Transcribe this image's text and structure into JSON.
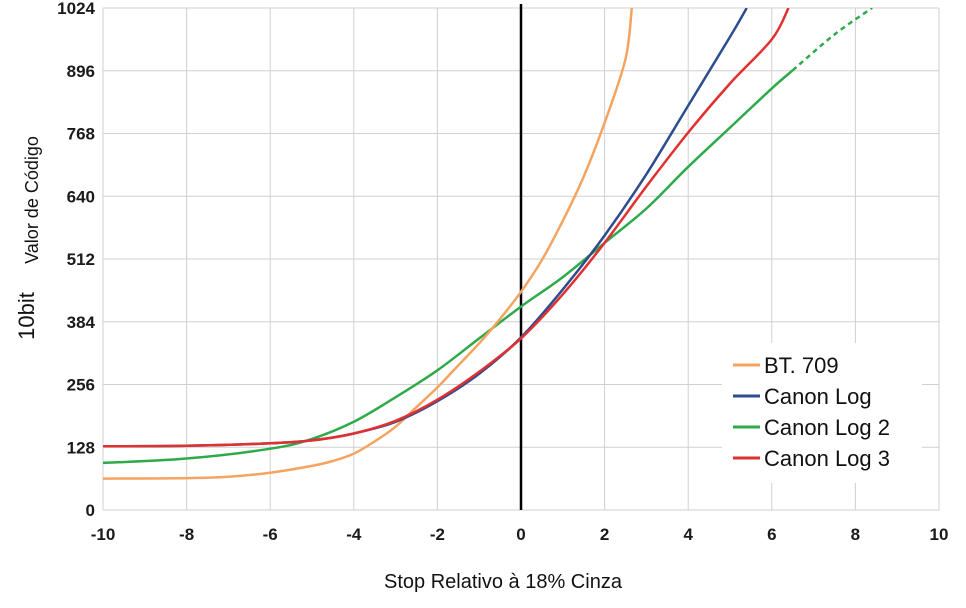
{
  "chart_data": {
    "type": "line",
    "title": "",
    "xlabel": "Stop Relativo à 18% Cinza",
    "ylabel_main": "Valor de Código",
    "ylabel_prefix": "10bit",
    "xlim": [
      -10,
      10
    ],
    "ylim": [
      0,
      1024
    ],
    "xticks": [
      -10,
      -8,
      -6,
      -4,
      -2,
      0,
      2,
      4,
      6,
      8,
      10
    ],
    "xtick_labels": [
      "-10",
      "-8",
      "-6",
      "-4",
      "-2",
      "0",
      "2",
      "4",
      "6",
      "8",
      "10"
    ],
    "yticks": [
      0,
      128,
      256,
      384,
      512,
      640,
      768,
      896,
      1024
    ],
    "ytick_labels": [
      "0",
      "128",
      "256",
      "384",
      "512",
      "640",
      "768",
      "896",
      "1024"
    ],
    "grid": true,
    "legend_position": "bottom-right",
    "reference_line_x": 0,
    "series": [
      {
        "name": "BT. 709",
        "color": "#f4a460",
        "points": [
          [
            -10,
            64
          ],
          [
            -8,
            65
          ],
          [
            -7,
            68
          ],
          [
            -6,
            76
          ],
          [
            -5,
            90
          ],
          [
            -4.5,
            100
          ],
          [
            -4,
            115
          ],
          [
            -3.5,
            140
          ],
          [
            -3,
            170
          ],
          [
            -2.5,
            210
          ],
          [
            -2,
            250
          ],
          [
            -1.5,
            295
          ],
          [
            -1,
            340
          ],
          [
            -0.5,
            390
          ],
          [
            0,
            445
          ],
          [
            0.5,
            510
          ],
          [
            1,
            590
          ],
          [
            1.5,
            680
          ],
          [
            2,
            790
          ],
          [
            2.5,
            920
          ],
          [
            2.65,
            1024
          ]
        ]
      },
      {
        "name": "Canon Log",
        "color": "#2e4d8f",
        "points": [
          [
            -10,
            130
          ],
          [
            -8,
            131
          ],
          [
            -6,
            136
          ],
          [
            -5,
            142
          ],
          [
            -4,
            156
          ],
          [
            -3,
            180
          ],
          [
            -2,
            222
          ],
          [
            -1,
            278
          ],
          [
            0,
            352
          ],
          [
            1,
            450
          ],
          [
            2,
            560
          ],
          [
            3,
            685
          ],
          [
            4,
            825
          ],
          [
            5,
            965
          ],
          [
            5.4,
            1024
          ]
        ]
      },
      {
        "name": "Canon Log 2",
        "color": "#2eaa4a",
        "points": [
          [
            -10,
            96
          ],
          [
            -8,
            105
          ],
          [
            -6,
            125
          ],
          [
            -5,
            145
          ],
          [
            -4,
            180
          ],
          [
            -3,
            230
          ],
          [
            -2,
            285
          ],
          [
            -1,
            350
          ],
          [
            0,
            415
          ],
          [
            1,
            475
          ],
          [
            2,
            545
          ],
          [
            3,
            615
          ],
          [
            4,
            700
          ],
          [
            5,
            780
          ],
          [
            6,
            860
          ],
          [
            6.5,
            897
          ]
        ]
      },
      {
        "name": "Canon Log 2 (extension)",
        "color": "#2eaa4a",
        "dashed": true,
        "points": [
          [
            6.5,
            897
          ],
          [
            7.5,
            970
          ],
          [
            8.4,
            1024
          ]
        ]
      },
      {
        "name": "Canon Log 3",
        "color": "#e03030",
        "points": [
          [
            -10,
            130
          ],
          [
            -8,
            131
          ],
          [
            -6,
            136
          ],
          [
            -5,
            142
          ],
          [
            -4,
            156
          ],
          [
            -3,
            182
          ],
          [
            -2,
            225
          ],
          [
            -1,
            282
          ],
          [
            0,
            350
          ],
          [
            1,
            440
          ],
          [
            2,
            545
          ],
          [
            3,
            660
          ],
          [
            4,
            770
          ],
          [
            5,
            870
          ],
          [
            6,
            960
          ],
          [
            6.4,
            1024
          ]
        ]
      }
    ]
  }
}
